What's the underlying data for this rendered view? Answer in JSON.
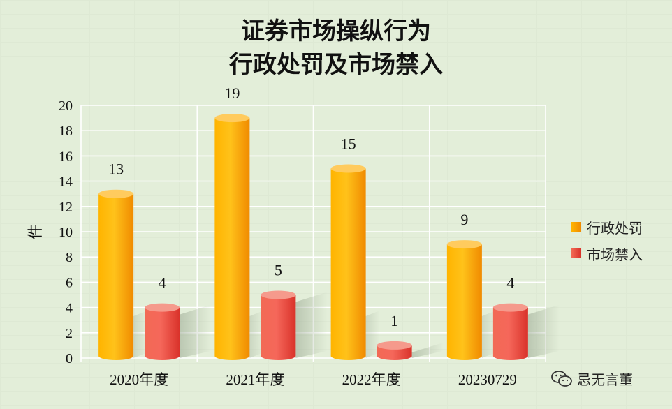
{
  "chart_data": {
    "type": "bar",
    "title_line1": "证券市场操纵行为",
    "title_line2": "行政处罚及市场禁入",
    "ylabel": "件",
    "ylim": [
      0,
      20
    ],
    "yticks": [
      0,
      2,
      4,
      6,
      8,
      10,
      12,
      14,
      16,
      18,
      20
    ],
    "categories": [
      "2020年度",
      "2021年度",
      "2022年度",
      "20230729"
    ],
    "series": [
      {
        "name": "行政处罚",
        "values": [
          13,
          19,
          15,
          9
        ],
        "color": "#ffa800"
      },
      {
        "name": "市场禁入",
        "values": [
          4,
          5,
          1,
          4
        ],
        "color": "#ee4b3c"
      }
    ],
    "grid": true,
    "legend_position": "right"
  },
  "watermark": {
    "text": "忌无言董",
    "icon": "wechat-icon"
  }
}
